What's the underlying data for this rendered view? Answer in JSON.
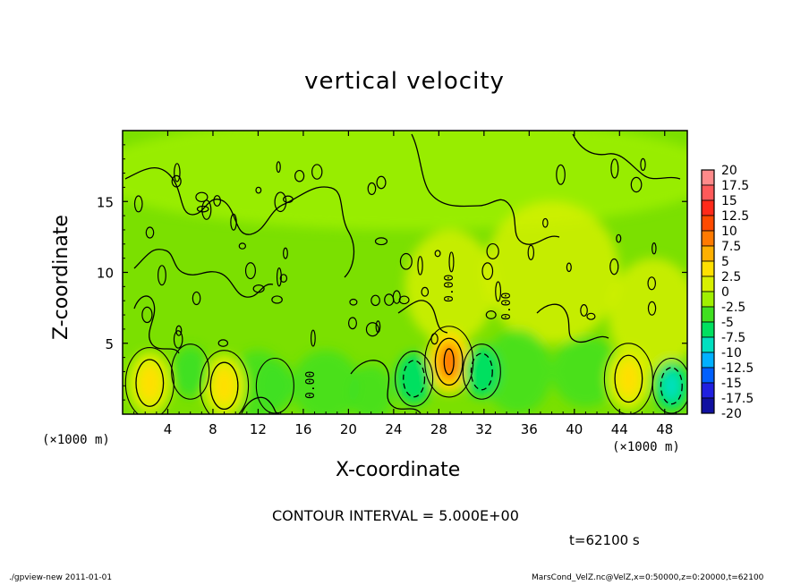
{
  "title": "vertical velocity",
  "footer": {
    "left": "./gpview-new   2011-01-01",
    "right": "MarsCond_VelZ.nc@VelZ,x=0:50000,z=0:20000,t=62100"
  },
  "annotations": {
    "contour_interval": "CONTOUR INTERVAL = 5.000E+00",
    "time": "t=62100 s",
    "x_unit_left": "(×1000 m)",
    "x_unit_right": "(×1000 m)",
    "contour_label": "0.00"
  },
  "chart_data": {
    "type": "heatmap",
    "title": "vertical velocity",
    "xlabel": "X-coordinate",
    "ylabel": "Z-coordinate",
    "xlim": [
      0,
      50
    ],
    "ylim": [
      0,
      20
    ],
    "x_ticks": [
      {
        "value": 4,
        "label": "4"
      },
      {
        "value": 8,
        "label": "8"
      },
      {
        "value": 12,
        "label": "12"
      },
      {
        "value": 16,
        "label": "16"
      },
      {
        "value": 20,
        "label": "20"
      },
      {
        "value": 24,
        "label": "24"
      },
      {
        "value": 28,
        "label": "28"
      },
      {
        "value": 32,
        "label": "32"
      },
      {
        "value": 36,
        "label": "36"
      },
      {
        "value": 40,
        "label": "40"
      },
      {
        "value": 44,
        "label": "44"
      },
      {
        "value": 48,
        "label": "48"
      }
    ],
    "y_ticks": [
      {
        "value": 5,
        "label": "5"
      },
      {
        "value": 10,
        "label": "10"
      },
      {
        "value": 15,
        "label": "15"
      }
    ],
    "contour_interval": 5,
    "colorbar": {
      "levels": [
        "20",
        "17.5",
        "15",
        "12.5",
        "10",
        "7.5",
        "5",
        "2.5",
        "0",
        "-2.5",
        "-5",
        "-7.5",
        "-10",
        "-12.5",
        "-15",
        "-17.5",
        "-20"
      ],
      "colors": [
        "#ff8a8a",
        "#ff5a5a",
        "#ff2a1a",
        "#ff4a00",
        "#ff7a00",
        "#ffb000",
        "#ffe000",
        "#d8f000",
        "#a0f000",
        "#40e020",
        "#00e060",
        "#00e0c0",
        "#00b0ff",
        "#0060ff",
        "#2020e0",
        "#1010a0",
        "#6000b0"
      ]
    },
    "features": [
      {
        "x": 2.4,
        "z": 2.2,
        "peak": 5,
        "sign": "up"
      },
      {
        "x": 9.0,
        "z": 2.0,
        "peak": 5,
        "sign": "up"
      },
      {
        "x": 28.9,
        "z": 3.7,
        "peak": 10,
        "sign": "up"
      },
      {
        "x": 44.8,
        "z": 2.5,
        "peak": 5,
        "sign": "up"
      },
      {
        "x": 31.8,
        "z": 3.0,
        "peak": -5,
        "sign": "down"
      },
      {
        "x": 25.8,
        "z": 2.5,
        "peak": -5,
        "sign": "down"
      },
      {
        "x": 48.6,
        "z": 2.0,
        "peak": -7.5,
        "sign": "down"
      },
      {
        "x": 6.0,
        "z": 3.0,
        "peak": -2.5,
        "sign": "down"
      },
      {
        "x": 13.5,
        "z": 2.0,
        "peak": -2.5,
        "sign": "down"
      }
    ]
  }
}
